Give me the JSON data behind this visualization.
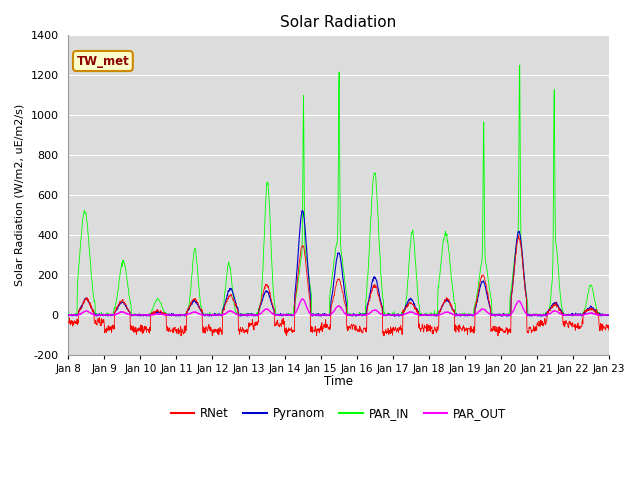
{
  "title": "Solar Radiation",
  "ylabel": "Solar Radiation (W/m2, uE/m2/s)",
  "xlabel": "Time",
  "ylim": [
    -200,
    1400
  ],
  "yticks": [
    -200,
    0,
    200,
    400,
    600,
    800,
    1000,
    1200,
    1400
  ],
  "background_color": "#dcdcdc",
  "site_label": "TW_met",
  "site_label_color": "#8B0000",
  "site_label_bg": "#ffffcc",
  "legend_order": [
    "RNet",
    "Pyranom",
    "PAR_IN",
    "PAR_OUT"
  ],
  "line_colors": {
    "RNet": "#ff0000",
    "Pyranom": "#0000cd",
    "PAR_IN": "#00ff00",
    "PAR_OUT": "#ff00ff"
  },
  "xtick_labels": [
    "Jan 8",
    "Jan 9",
    "Jan 10",
    "Jan 11",
    "Jan 12",
    "Jan 13",
    "Jan 14",
    "Jan 15",
    "Jan 16",
    "Jan 17",
    "Jan 18",
    "Jan 19",
    "Jan 20",
    "Jan 21",
    "Jan 22",
    "Jan 23"
  ],
  "n_days": 15,
  "pts_per_day": 96,
  "par_in_peaks": [
    520,
    270,
    80,
    330,
    260,
    660,
    1100,
    1240,
    710,
    420,
    410,
    970,
    1310,
    1170,
    150
  ],
  "rnet_peaks": [
    80,
    70,
    20,
    80,
    100,
    150,
    350,
    180,
    150,
    60,
    80,
    200,
    390,
    50,
    30
  ],
  "pyranom_peaks": [
    80,
    65,
    15,
    70,
    130,
    120,
    520,
    310,
    190,
    80,
    75,
    170,
    420,
    60,
    40
  ],
  "par_out_peaks": [
    20,
    15,
    5,
    15,
    20,
    30,
    80,
    45,
    25,
    15,
    15,
    30,
    70,
    20,
    10
  ]
}
